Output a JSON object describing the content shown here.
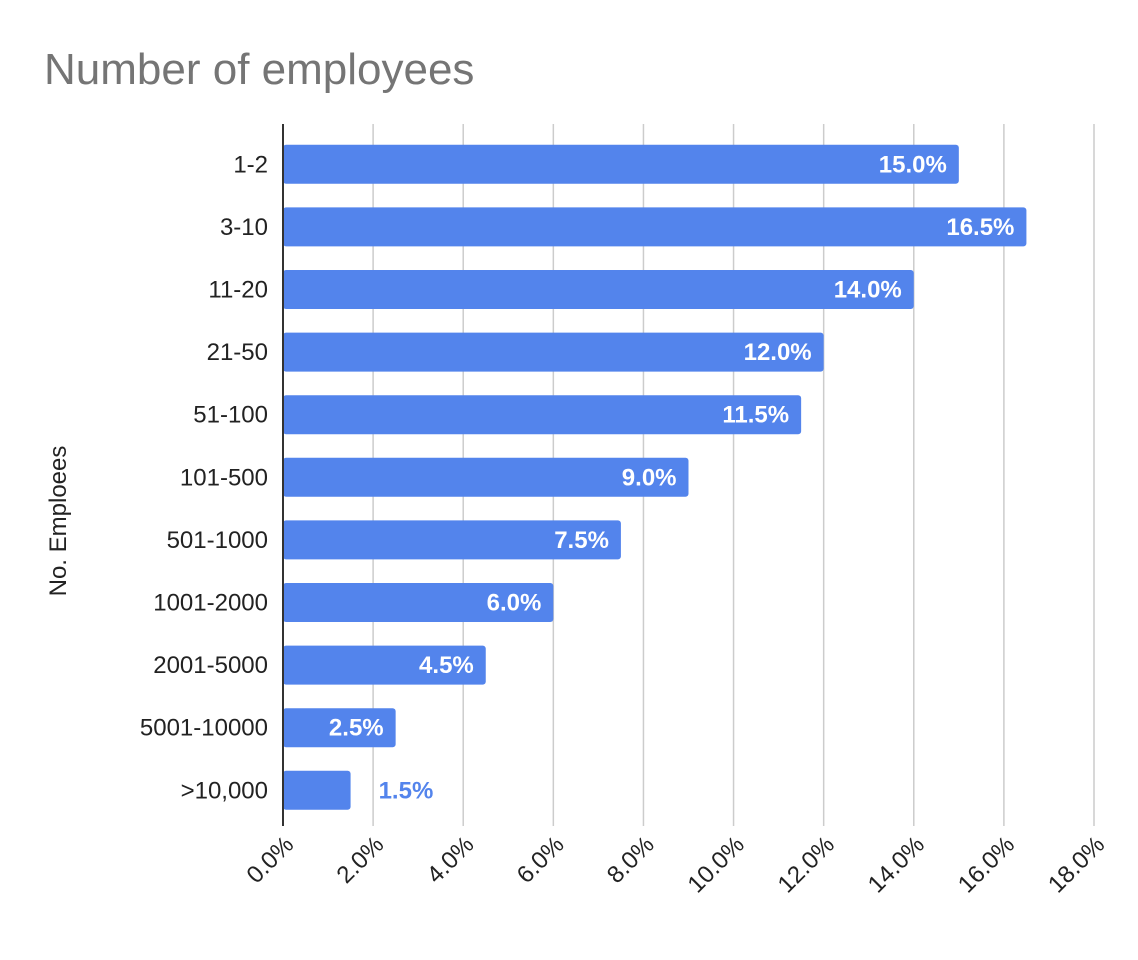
{
  "chart_data": {
    "type": "bar",
    "orientation": "horizontal",
    "title": "Number of employees",
    "ylabel": "No. Emploees",
    "xlabel": "",
    "categories": [
      "1-2",
      "3-10",
      "11-20",
      "21-50",
      "51-100",
      "101-500",
      "501-1000",
      "1001-2000",
      "2001-5000",
      "5001-10000",
      ">10,000"
    ],
    "values": [
      15.0,
      16.5,
      14.0,
      12.0,
      11.5,
      9.0,
      7.5,
      6.0,
      4.5,
      2.5,
      1.5
    ],
    "data_labels": [
      "15.0%",
      "16.5%",
      "14.0%",
      "12.0%",
      "11.5%",
      "9.0%",
      "7.5%",
      "6.0%",
      "4.5%",
      "2.5%",
      "1.5%"
    ],
    "xlim": [
      0,
      18
    ],
    "x_ticks": [
      0,
      2,
      4,
      6,
      8,
      10,
      12,
      14,
      16,
      18
    ],
    "x_tick_labels": [
      "0.0%",
      "2.0%",
      "4.0%",
      "6.0%",
      "8.0%",
      "10.0%",
      "12.0%",
      "14.0%",
      "16.0%",
      "18.0%"
    ],
    "grid": true,
    "legend": false,
    "colors": {
      "bar": "#5384EC",
      "label_inside": "#ffffff",
      "label_outside": "#5384EC",
      "grid": "#cccccc",
      "axis": "#333333",
      "title": "#757575"
    }
  }
}
